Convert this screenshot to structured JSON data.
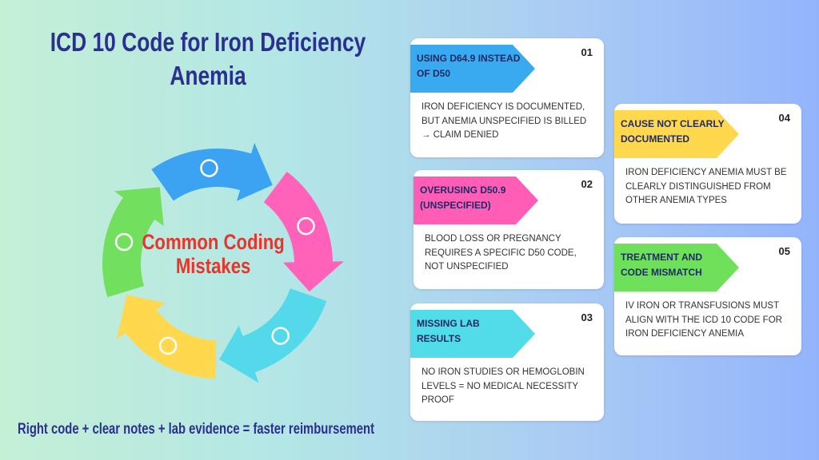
{
  "title": "ICD 10 Code for Iron Deficiency Anemia",
  "cycle": {
    "label": "Common Coding Mistakes"
  },
  "footer": "Right code + clear notes + lab evidence = faster reimbursement",
  "cards": [
    {
      "number": "01",
      "heading": "USING D64.9 INSTEAD OF D50",
      "text": "IRON DEFICIENCY IS DOCUMENTED, BUT ANEMIA UNSPECIFIED IS BILLED → CLAIM DENIED"
    },
    {
      "number": "02",
      "heading": "OVERUSING D50.9 (UNSPECIFIED)",
      "text": "BLOOD LOSS OR PREGNANCY REQUIRES A SPECIFIC D50 CODE, NOT UNSPECIFIED"
    },
    {
      "number": "03",
      "heading": "MISSING LAB RESULTS",
      "text": "NO IRON STUDIES OR HEMOGLOBIN LEVELS = NO MEDICAL NECESSITY PROOF"
    },
    {
      "number": "04",
      "heading": "CAUSE NOT CLEARLY DOCUMENTED",
      "text": "IRON DEFICIENCY ANEMIA MUST BE CLEARLY DISTINGUISHED FROM OTHER ANEMIA TYPES"
    },
    {
      "number": "05",
      "heading": "TREATMENT AND CODE MISMATCH",
      "text": "IV IRON OR TRANSFUSIONS MUST ALIGN WITH THE ICD 10 CODE FOR IRON DEFICIENCY ANEMIA"
    }
  ]
}
